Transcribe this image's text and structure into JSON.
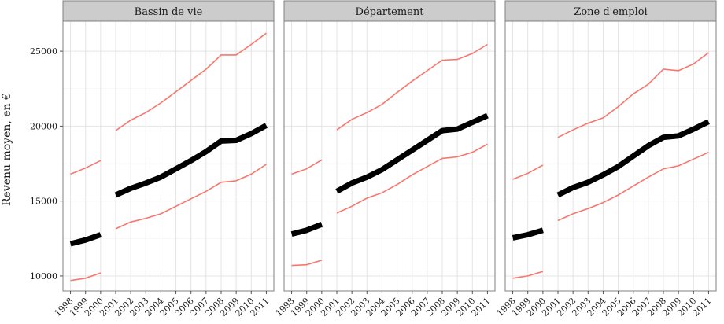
{
  "chart_data": {
    "type": "line",
    "title": "",
    "xlabel": "",
    "ylabel": "Revenu moyen, en €",
    "x_ticks": [
      "1998",
      "1999",
      "2000",
      "2001",
      "2002",
      "2003",
      "2004",
      "2005",
      "2006",
      "2007",
      "2008",
      "2009",
      "2010",
      "2011"
    ],
    "y_ticks": [
      10000,
      15000,
      20000,
      25000
    ],
    "y_tick_labels": [
      "10000",
      "15000",
      "20000",
      "25000"
    ],
    "ylim": [
      9000,
      27000
    ],
    "xlim": [
      1997.5,
      2011.5
    ],
    "grid": true,
    "colors": {
      "mean": "#000000",
      "bounds": "#f8766d"
    },
    "panels": [
      {
        "name": "Bassin de vie",
        "segments": [
          {
            "x": [
              1998,
              1999,
              2000
            ],
            "mean": [
              12150,
              12400,
              12750
            ],
            "upper": [
              16800,
              17200,
              17700
            ],
            "lower": [
              9700,
              9850,
              10200
            ]
          },
          {
            "x": [
              2001,
              2002,
              2003,
              2004,
              2005,
              2006,
              2007,
              2008,
              2009,
              2010,
              2011
            ],
            "mean": [
              15400,
              15850,
              16200,
              16600,
              17150,
              17700,
              18300,
              19000,
              19050,
              19500,
              20050
            ],
            "upper": [
              19700,
              20400,
              20900,
              21550,
              22300,
              23050,
              23800,
              24750,
              24750,
              25450,
              26200
            ],
            "lower": [
              13150,
              13600,
              13850,
              14150,
              14650,
              15150,
              15650,
              16250,
              16350,
              16800,
              17450
            ]
          }
        ]
      },
      {
        "name": "Département",
        "segments": [
          {
            "x": [
              1998,
              1999,
              2000
            ],
            "mean": [
              12800,
              13050,
              13450
            ],
            "upper": [
              16800,
              17150,
              17750
            ],
            "lower": [
              10700,
              10750,
              11050
            ]
          },
          {
            "x": [
              2001,
              2002,
              2003,
              2004,
              2005,
              2006,
              2007,
              2008,
              2009,
              2010,
              2011
            ],
            "mean": [
              15650,
              16200,
              16600,
              17100,
              17750,
              18400,
              19050,
              19700,
              19800,
              20250,
              20700
            ],
            "upper": [
              19750,
              20450,
              20900,
              21450,
              22250,
              23000,
              23700,
              24400,
              24450,
              24850,
              25450
            ],
            "lower": [
              14200,
              14650,
              15200,
              15550,
              16100,
              16750,
              17300,
              17850,
              17950,
              18250,
              18800
            ]
          }
        ]
      },
      {
        "name": "Zone d'emploi",
        "segments": [
          {
            "x": [
              1998,
              1999,
              2000
            ],
            "mean": [
              12550,
              12750,
              13050
            ],
            "upper": [
              16450,
              16850,
              17400
            ],
            "lower": [
              9850,
              10000,
              10300
            ]
          },
          {
            "x": [
              2001,
              2002,
              2003,
              2004,
              2005,
              2006,
              2007,
              2008,
              2009,
              2010,
              2011
            ],
            "mean": [
              15400,
              15900,
              16250,
              16750,
              17300,
              18000,
              18700,
              19250,
              19350,
              19800,
              20300
            ],
            "upper": [
              19250,
              19750,
              20200,
              20550,
              21300,
              22150,
              22800,
              23800,
              23700,
              24150,
              24900
            ],
            "lower": [
              13700,
              14150,
              14500,
              14900,
              15400,
              16000,
              16600,
              17150,
              17350,
              17800,
              18250
            ]
          }
        ]
      }
    ]
  }
}
